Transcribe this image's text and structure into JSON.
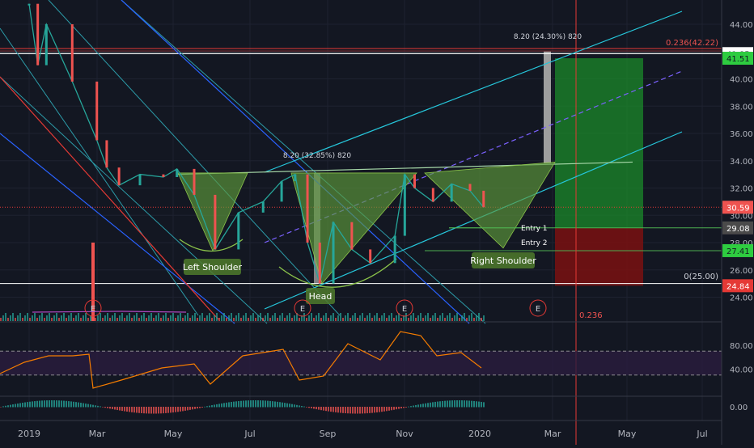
{
  "colors": {
    "background": "#131722",
    "grid": "#1e2230",
    "price_line": "#5b6270",
    "bull_candle": "#26a69a",
    "bear_candle": "#ef5350",
    "pattern_fill": "#5d9a3c",
    "channel_cyan": "#26c6da",
    "channel_dashed": "#7b61ff",
    "red_line": "#e53935",
    "blue_line": "#2962ff",
    "profit_zone": "#1b8a2a",
    "loss_zone": "#7a1010",
    "rsi_line": "#f57c00",
    "rsi_band": "#2a1d3f",
    "macd_pos": "#26a69a",
    "macd_neg": "#ef5350",
    "axis_text": "#b2b5be",
    "label_green_bg": "#4f7a2c"
  },
  "chart_data": {
    "type": "candlestick",
    "x_axis_labels": [
      "2019",
      "Mar",
      "May",
      "Jul",
      "Sep",
      "Nov",
      "2020",
      "Mar",
      "May",
      "Jul"
    ],
    "price_axis_ticks": [
      "44.00",
      "42.00",
      "40.00",
      "38.00",
      "36.00",
      "34.00",
      "32.00",
      "30.00",
      "28.00",
      "26.00",
      "24.00"
    ],
    "price_ylim": [
      22.5,
      45.8
    ],
    "rsi_axis_ticks": [
      "80.00",
      "40.00"
    ],
    "rsi_band": [
      30,
      70
    ],
    "macd_axis_ticks": [
      "0.00"
    ],
    "price_series": [
      {
        "x": "2019-01-01",
        "y": 45.5
      },
      {
        "x": "2019-01-08",
        "y": 41.0
      },
      {
        "x": "2019-01-15",
        "y": 44.0
      },
      {
        "x": "2019-02-05",
        "y": 39.8
      },
      {
        "x": "2019-02-25",
        "y": 35.5
      },
      {
        "x": "2019-03-05",
        "y": 33.5
      },
      {
        "x": "2019-03-15",
        "y": 32.2
      },
      {
        "x": "2019-04-01",
        "y": 33.0
      },
      {
        "x": "2019-04-20",
        "y": 32.8
      },
      {
        "x": "2019-05-01",
        "y": 33.4
      },
      {
        "x": "2019-05-15",
        "y": 31.5
      },
      {
        "x": "2019-06-01",
        "y": 27.5
      },
      {
        "x": "2019-06-20",
        "y": 30.2
      },
      {
        "x": "2019-07-10",
        "y": 31.0
      },
      {
        "x": "2019-07-25",
        "y": 32.5
      },
      {
        "x": "2019-08-05",
        "y": 33.0
      },
      {
        "x": "2019-08-15",
        "y": 28.0
      },
      {
        "x": "2019-08-25",
        "y": 25.0
      },
      {
        "x": "2019-09-05",
        "y": 29.5
      },
      {
        "x": "2019-09-20",
        "y": 27.5
      },
      {
        "x": "2019-10-05",
        "y": 26.5
      },
      {
        "x": "2019-10-25",
        "y": 28.5
      },
      {
        "x": "2019-11-02",
        "y": 33.0
      },
      {
        "x": "2019-11-10",
        "y": 32.0
      },
      {
        "x": "2019-11-25",
        "y": 31.0
      },
      {
        "x": "2019-12-10",
        "y": 32.3
      },
      {
        "x": "2019-12-25",
        "y": 31.8
      },
      {
        "x": "2020-01-05",
        "y": 30.59
      }
    ],
    "pattern": {
      "neckline_value": 33.5,
      "left_shoulder_low": 27.4,
      "head_low": 25.0,
      "right_shoulder_low": 27.6
    },
    "levels": {
      "fib_top": 42.22,
      "fib_bottom": 25.0,
      "target": 41.51,
      "current": 30.59,
      "entry_1": 29.08,
      "entry_2": 27.41,
      "stop": 24.84,
      "upper_hline": 41.85
    }
  },
  "labels": {
    "left_shoulder": "Left Shoulder",
    "head": "Head",
    "right_shoulder": "Right Shoulder",
    "entry_1": "Entry 1",
    "entry_2": "Entry 2",
    "measure_1": "8.20 (32.85%) 820",
    "measure_2": "8.20 (24.30%) 820",
    "fib_top": "0.236(42.22)",
    "fib_bottom": "0(25.00)",
    "fib_lower": "0.236",
    "earnings_marker": "E"
  },
  "price_badges": [
    {
      "text": "41.85",
      "value": 41.85,
      "bg": "#ffffff",
      "fg": "#131722"
    },
    {
      "text": "41.51",
      "value": 41.51,
      "bg": "#2ecc40",
      "fg": "#131722"
    },
    {
      "text": "30.59",
      "value": 30.59,
      "bg": "#ef5350",
      "fg": "#ffffff"
    },
    {
      "text": "29.08",
      "value": 29.08,
      "bg": "#4a4a4a",
      "fg": "#ffffff"
    },
    {
      "text": "27.41",
      "value": 27.41,
      "bg": "#2ecc40",
      "fg": "#131722"
    },
    {
      "text": "24.84",
      "value": 24.84,
      "bg": "#e53935",
      "fg": "#ffffff"
    }
  ]
}
